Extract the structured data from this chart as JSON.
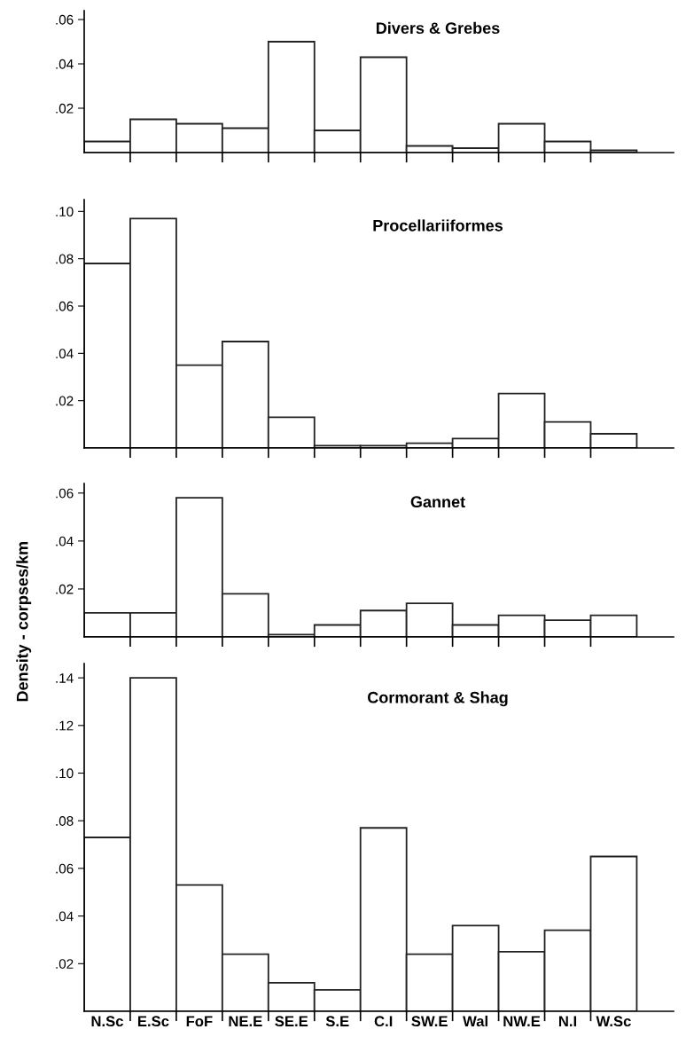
{
  "chart_data": [
    {
      "type": "bar",
      "title": "Divers & Grebes",
      "categories": [
        null,
        null,
        null,
        null,
        null,
        null,
        null,
        null,
        null,
        null,
        null,
        null
      ],
      "values": [
        0.005,
        0.015,
        0.013,
        0.011,
        0.05,
        0.01,
        0.043,
        0.003,
        0.002,
        0.013,
        0.005,
        0.001
      ],
      "color": "#ffffff",
      "ylim": [
        0,
        0.064
      ],
      "yticks": [
        {
          "value": 0.02,
          "label": ".02"
        },
        {
          "value": 0.04,
          "label": ".04"
        },
        {
          "value": 0.06,
          "label": ".06"
        }
      ],
      "tick_labels": "y",
      "grid": false,
      "legend": false
    },
    {
      "type": "bar",
      "title": "Procellariiformes",
      "categories": [
        null,
        null,
        null,
        null,
        null,
        null,
        null,
        null,
        null,
        null,
        null,
        null
      ],
      "values": [
        0.078,
        0.097,
        0.035,
        0.045,
        0.013,
        0.001,
        0.001,
        0.002,
        0.004,
        0.023,
        0.011,
        0.006
      ],
      "color": "#ffffff",
      "ylim": [
        0,
        0.105
      ],
      "yticks": [
        {
          "value": 0.02,
          "label": ".02"
        },
        {
          "value": 0.04,
          "label": ".04"
        },
        {
          "value": 0.06,
          "label": ".06"
        },
        {
          "value": 0.08,
          "label": ".08"
        },
        {
          "value": 0.1,
          "label": ".10"
        }
      ],
      "tick_labels": "y",
      "grid": false,
      "legend": false
    },
    {
      "type": "bar",
      "title": "Gannet",
      "ylabel": "Density - corpses/km",
      "categories": [
        null,
        null,
        null,
        null,
        null,
        null,
        null,
        null,
        null,
        null,
        null,
        null
      ],
      "values": [
        0.01,
        0.01,
        0.058,
        0.018,
        0.001,
        0.005,
        0.011,
        0.014,
        0.005,
        0.009,
        0.007,
        0.009
      ],
      "color": "#ffffff",
      "ylim": [
        0,
        0.064
      ],
      "yticks": [
        {
          "value": 0.02,
          "label": ".02"
        },
        {
          "value": 0.04,
          "label": ".04"
        },
        {
          "value": 0.06,
          "label": ".06"
        }
      ],
      "tick_labels": "y",
      "grid": false,
      "legend": false
    },
    {
      "type": "bar",
      "title": "Cormorant & Shag",
      "categories": [
        "N.Sc",
        "E.Sc",
        "FoF",
        "NE.E",
        "SE.E",
        "S.E",
        "C.I",
        "SW.E",
        "Wal",
        "NW.E",
        "N.I",
        "W.Sc"
      ],
      "values": [
        0.073,
        0.14,
        0.053,
        0.024,
        0.012,
        0.009,
        0.077,
        0.024,
        0.036,
        0.025,
        0.034,
        0.065
      ],
      "color": "#ffffff",
      "ylim": [
        0,
        0.146
      ],
      "yticks": [
        {
          "value": 0.02,
          "label": ".02"
        },
        {
          "value": 0.04,
          "label": ".04"
        },
        {
          "value": 0.06,
          "label": ".06"
        },
        {
          "value": 0.08,
          "label": ".08"
        },
        {
          "value": 0.1,
          "label": ".10"
        },
        {
          "value": 0.12,
          "label": ".12"
        },
        {
          "value": 0.14,
          "label": ".14"
        }
      ],
      "grid": false,
      "legend": false
    }
  ]
}
